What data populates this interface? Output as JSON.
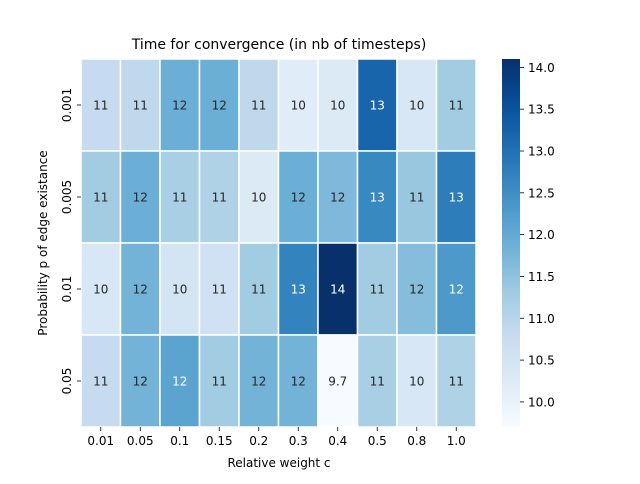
{
  "chart_data": {
    "type": "heatmap",
    "title": "Time for convergence (in nb of timesteps)",
    "xlabel": "Relative weight c",
    "ylabel": "Probability p of edge existance",
    "x_categories": [
      "0.01",
      "0.05",
      "0.1",
      "0.15",
      "0.2",
      "0.3",
      "0.4",
      "0.5",
      "0.8",
      "1.0"
    ],
    "y_categories": [
      "0.001",
      "0.005",
      "0.01",
      "0.05"
    ],
    "values": [
      [
        10.8,
        10.9,
        11.9,
        11.9,
        10.9,
        10.2,
        10.3,
        13.2,
        10.4,
        11.3
      ],
      [
        11.3,
        11.9,
        11.2,
        11.1,
        10.3,
        11.9,
        11.7,
        12.6,
        11.4,
        12.8
      ],
      [
        10.4,
        11.8,
        10.5,
        10.6,
        11.3,
        12.7,
        14.1,
        11.3,
        11.6,
        12.3
      ],
      [
        10.8,
        11.8,
        12.1,
        11.3,
        11.8,
        11.8,
        9.7,
        11.2,
        10.4,
        11.1
      ]
    ],
    "annotations": [
      [
        "11",
        "11",
        "12",
        "12",
        "11",
        "10",
        "10",
        "13",
        "10",
        "11"
      ],
      [
        "11",
        "12",
        "11",
        "11",
        "10",
        "12",
        "12",
        "13",
        "11",
        "13"
      ],
      [
        "10",
        "12",
        "10",
        "11",
        "11",
        "13",
        "14",
        "11",
        "12",
        "12"
      ],
      [
        "11",
        "12",
        "12",
        "11",
        "12",
        "12",
        "9.7",
        "11",
        "10",
        "11"
      ]
    ],
    "vmin": 9.7,
    "vmax": 14.1,
    "colormap": "Blues",
    "colorbar_ticks": [
      "10.0",
      "10.5",
      "11.0",
      "11.5",
      "12.0",
      "12.5",
      "13.0",
      "13.5",
      "14.0"
    ],
    "grid": false,
    "legend": "colorbar-right"
  }
}
